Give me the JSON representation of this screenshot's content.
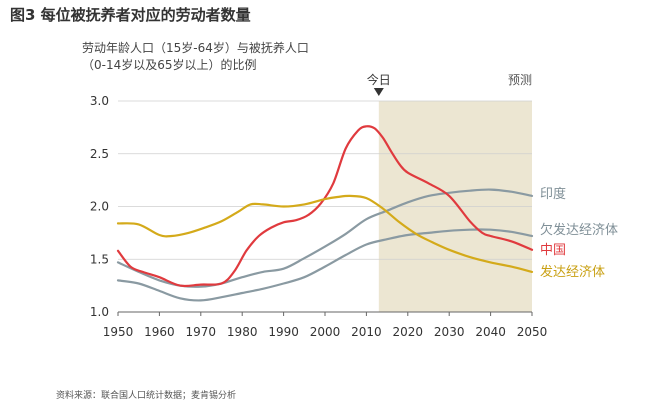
{
  "figure": {
    "title": "图3  每位被抚养者对应的劳动者数量",
    "subtitle_line1": "劳动年龄人口（15岁-64岁）与被抚养人口",
    "subtitle_line2": "（0-14岁以及65岁以上）的比例",
    "source": "资料来源：联合国人口统计数据；麦肯锡分析"
  },
  "chart_data": {
    "type": "line",
    "title": "",
    "xlabel": "",
    "ylabel": "",
    "xlim": [
      1950,
      2050
    ],
    "ylim": [
      1.0,
      3.0
    ],
    "x_ticks": [
      1950,
      1960,
      1970,
      1980,
      1990,
      2000,
      2010,
      2020,
      2030,
      2040,
      2050
    ],
    "y_ticks": [
      "1.0",
      "1.5",
      "2.0",
      "2.5",
      "3.0"
    ],
    "grid": true,
    "legend": "right-labels",
    "annotations": {
      "today_label": "今日",
      "today_x": 2013,
      "forecast_label": "预测",
      "forecast_start": 2013
    },
    "series": [
      {
        "name": "印度",
        "color": "#8a9aa2",
        "points": [
          [
            1950,
            1.3
          ],
          [
            1955,
            1.27
          ],
          [
            1960,
            1.2
          ],
          [
            1965,
            1.13
          ],
          [
            1970,
            1.11
          ],
          [
            1975,
            1.14
          ],
          [
            1980,
            1.18
          ],
          [
            1985,
            1.22
          ],
          [
            1990,
            1.27
          ],
          [
            1995,
            1.33
          ],
          [
            2000,
            1.43
          ],
          [
            2005,
            1.54
          ],
          [
            2010,
            1.64
          ],
          [
            2015,
            1.69
          ],
          [
            2020,
            1.73
          ],
          [
            2025,
            1.75
          ],
          [
            2030,
            1.77
          ],
          [
            2035,
            1.78
          ],
          [
            2040,
            1.78
          ],
          [
            2045,
            1.76
          ],
          [
            2050,
            1.72
          ]
        ]
      },
      {
        "name": "欠发达经济体",
        "color": "#8a9aa2",
        "points": [
          [
            1950,
            1.47
          ],
          [
            1955,
            1.38
          ],
          [
            1960,
            1.3
          ],
          [
            1965,
            1.25
          ],
          [
            1970,
            1.24
          ],
          [
            1975,
            1.27
          ],
          [
            1980,
            1.33
          ],
          [
            1985,
            1.38
          ],
          [
            1990,
            1.41
          ],
          [
            1995,
            1.51
          ],
          [
            2000,
            1.62
          ],
          [
            2005,
            1.74
          ],
          [
            2010,
            1.88
          ],
          [
            2015,
            1.96
          ],
          [
            2020,
            2.04
          ],
          [
            2025,
            2.1
          ],
          [
            2030,
            2.13
          ],
          [
            2035,
            2.15
          ],
          [
            2040,
            2.16
          ],
          [
            2045,
            2.14
          ],
          [
            2050,
            2.1
          ]
        ]
      },
      {
        "name": "中国",
        "color": "#e03a3e",
        "points": [
          [
            1950,
            1.58
          ],
          [
            1953,
            1.43
          ],
          [
            1956,
            1.38
          ],
          [
            1960,
            1.33
          ],
          [
            1965,
            1.25
          ],
          [
            1970,
            1.26
          ],
          [
            1975,
            1.27
          ],
          [
            1978,
            1.38
          ],
          [
            1981,
            1.58
          ],
          [
            1984,
            1.72
          ],
          [
            1987,
            1.8
          ],
          [
            1990,
            1.85
          ],
          [
            1993,
            1.87
          ],
          [
            1996,
            1.92
          ],
          [
            1999,
            2.03
          ],
          [
            2002,
            2.22
          ],
          [
            2005,
            2.55
          ],
          [
            2008,
            2.72
          ],
          [
            2010,
            2.76
          ],
          [
            2012,
            2.74
          ],
          [
            2014,
            2.65
          ],
          [
            2016,
            2.52
          ],
          [
            2018,
            2.4
          ],
          [
            2020,
            2.32
          ],
          [
            2025,
            2.22
          ],
          [
            2030,
            2.1
          ],
          [
            2035,
            1.86
          ],
          [
            2038,
            1.75
          ],
          [
            2040,
            1.72
          ],
          [
            2045,
            1.67
          ],
          [
            2050,
            1.59
          ]
        ]
      },
      {
        "name": "发达经济体",
        "color": "#d4aa1a",
        "points": [
          [
            1950,
            1.84
          ],
          [
            1955,
            1.83
          ],
          [
            1960,
            1.73
          ],
          [
            1963,
            1.72
          ],
          [
            1967,
            1.75
          ],
          [
            1971,
            1.8
          ],
          [
            1975,
            1.86
          ],
          [
            1979,
            1.95
          ],
          [
            1982,
            2.02
          ],
          [
            1985,
            2.02
          ],
          [
            1990,
            2.0
          ],
          [
            1995,
            2.02
          ],
          [
            2000,
            2.07
          ],
          [
            2003,
            2.09
          ],
          [
            2006,
            2.1
          ],
          [
            2010,
            2.08
          ],
          [
            2014,
            1.98
          ],
          [
            2018,
            1.85
          ],
          [
            2022,
            1.74
          ],
          [
            2026,
            1.66
          ],
          [
            2030,
            1.59
          ],
          [
            2035,
            1.52
          ],
          [
            2040,
            1.47
          ],
          [
            2045,
            1.43
          ],
          [
            2050,
            1.38
          ]
        ]
      }
    ],
    "label_colors": {
      "印度": "#7f8f97",
      "欠发达经济体": "#7f8f97",
      "中国": "#e03a3e",
      "发达经济体": "#c9a013"
    }
  }
}
